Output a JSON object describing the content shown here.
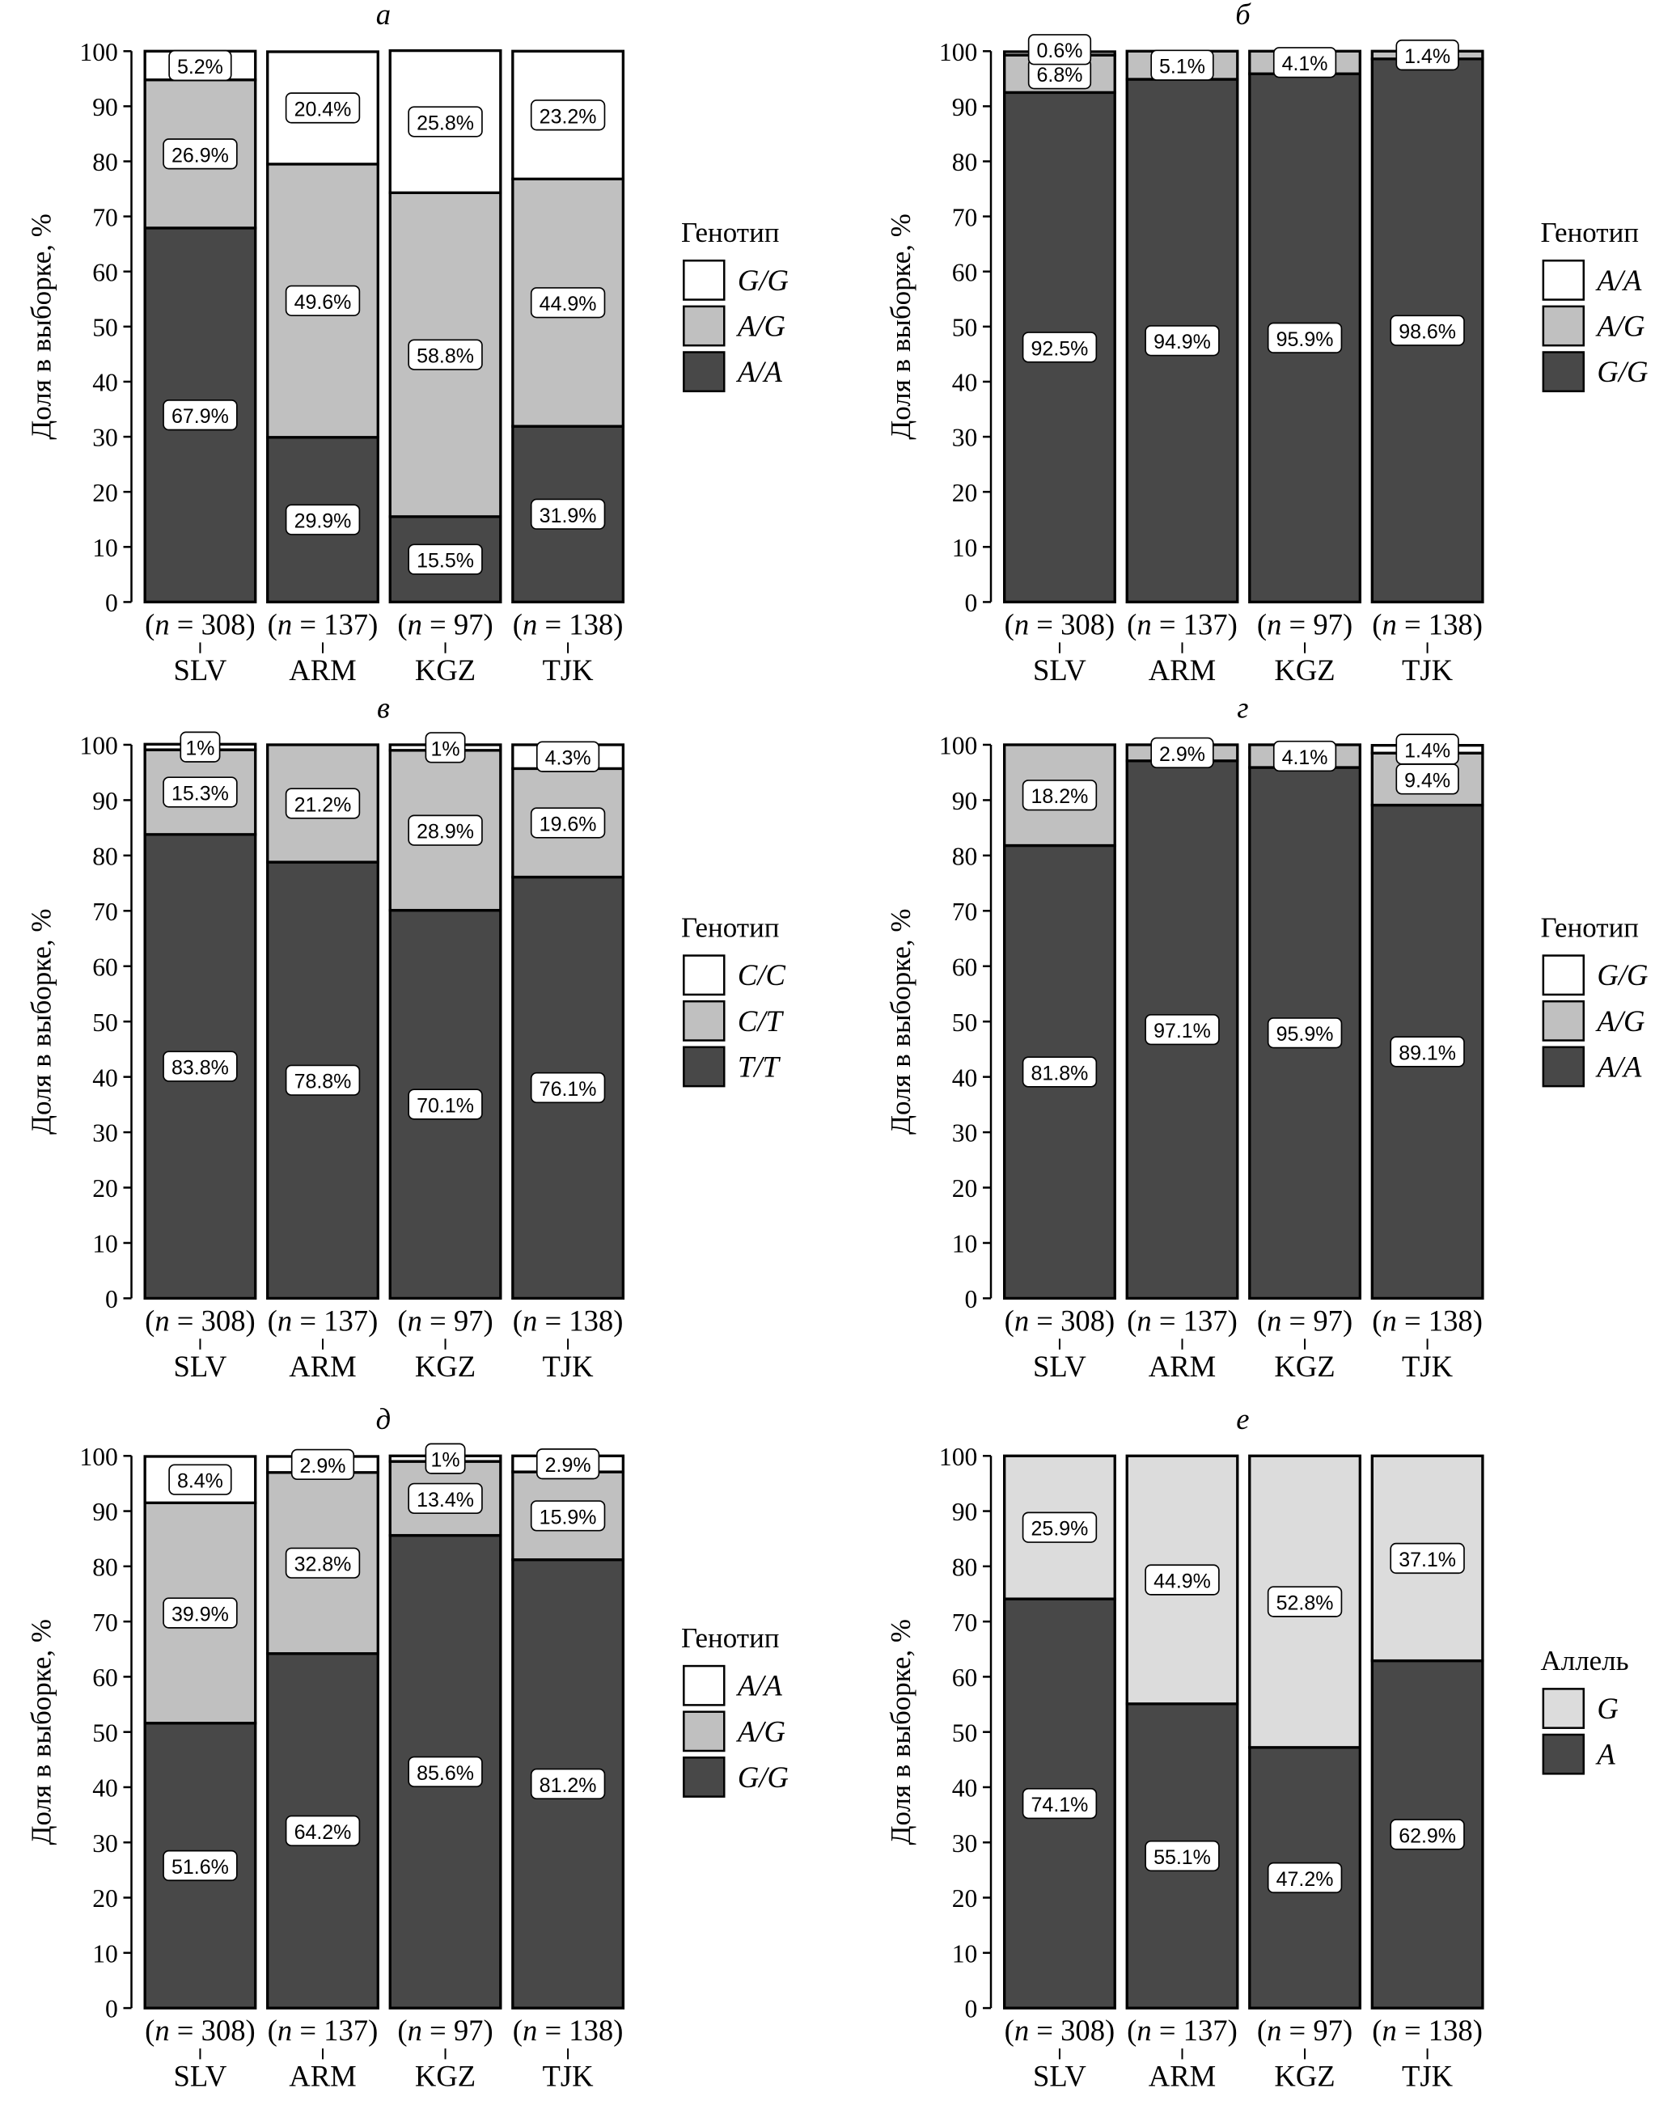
{
  "colors": {
    "dark": "#484848",
    "mid": "#c0c0c0",
    "light_allele": "#dcdcdc",
    "white": "#ffffff"
  },
  "chart_data": [
    {
      "type": "bar",
      "stacked": true,
      "title": "а",
      "ylabel": "Доля в выборке, %",
      "ylim": [
        0,
        100
      ],
      "categories": [
        "SLV",
        "ARM",
        "KGZ",
        "TJK"
      ],
      "n": [
        "308",
        "137",
        "97",
        "138"
      ],
      "legend_title": "Генотип",
      "series": [
        {
          "name": "A/A",
          "color": "dark",
          "values": [
            67.9,
            29.9,
            15.5,
            31.9
          ]
        },
        {
          "name": "A/G",
          "color": "mid",
          "values": [
            26.9,
            49.6,
            58.8,
            44.9
          ]
        },
        {
          "name": "G/G",
          "color": "white",
          "values": [
            5.2,
            20.4,
            25.8,
            23.2
          ]
        }
      ]
    },
    {
      "type": "bar",
      "stacked": true,
      "title": "б",
      "ylabel": "Доля в выборке, %",
      "ylim": [
        0,
        100
      ],
      "categories": [
        "SLV",
        "ARM",
        "KGZ",
        "TJK"
      ],
      "n": [
        "308",
        "137",
        "97",
        "138"
      ],
      "legend_title": "Генотип",
      "series": [
        {
          "name": "G/G",
          "color": "dark",
          "values": [
            92.5,
            94.9,
            95.9,
            98.6
          ]
        },
        {
          "name": "A/G",
          "color": "mid",
          "values": [
            6.8,
            5.1,
            4.1,
            1.4
          ]
        },
        {
          "name": "A/A",
          "color": "white",
          "values": [
            0.6,
            null,
            null,
            null
          ]
        }
      ]
    },
    {
      "type": "bar",
      "stacked": true,
      "title": "в",
      "ylabel": "Доля в выборке, %",
      "ylim": [
        0,
        100
      ],
      "categories": [
        "SLV",
        "ARM",
        "KGZ",
        "TJK"
      ],
      "n": [
        "308",
        "137",
        "97",
        "138"
      ],
      "legend_title": "Генотип",
      "series": [
        {
          "name": "T/T",
          "color": "dark",
          "values": [
            83.8,
            78.8,
            70.1,
            76.1
          ]
        },
        {
          "name": "C/T",
          "color": "mid",
          "values": [
            15.3,
            21.2,
            28.9,
            19.6
          ]
        },
        {
          "name": "C/C",
          "color": "white",
          "values": [
            1,
            null,
            1,
            4.3
          ]
        }
      ]
    },
    {
      "type": "bar",
      "stacked": true,
      "title": "г",
      "ylabel": "Доля в выборке, %",
      "ylim": [
        0,
        100
      ],
      "categories": [
        "SLV",
        "ARM",
        "KGZ",
        "TJK"
      ],
      "n": [
        "308",
        "137",
        "97",
        "138"
      ],
      "legend_title": "Генотип",
      "series": [
        {
          "name": "A/A",
          "color": "dark",
          "values": [
            81.8,
            97.1,
            95.9,
            89.1
          ]
        },
        {
          "name": "A/G",
          "color": "mid",
          "values": [
            18.2,
            2.9,
            4.1,
            9.4
          ]
        },
        {
          "name": "G/G",
          "color": "white",
          "values": [
            null,
            null,
            null,
            1.4
          ]
        }
      ]
    },
    {
      "type": "bar",
      "stacked": true,
      "title": "д",
      "ylabel": "Доля в выборке, %",
      "ylim": [
        0,
        100
      ],
      "categories": [
        "SLV",
        "ARM",
        "KGZ",
        "TJK"
      ],
      "n": [
        "308",
        "137",
        "97",
        "138"
      ],
      "legend_title": "Генотип",
      "series": [
        {
          "name": "G/G",
          "color": "dark",
          "values": [
            51.6,
            64.2,
            85.6,
            81.2
          ]
        },
        {
          "name": "A/G",
          "color": "mid",
          "values": [
            39.9,
            32.8,
            13.4,
            15.9
          ]
        },
        {
          "name": "A/A",
          "color": "white",
          "values": [
            8.4,
            2.9,
            1,
            2.9
          ]
        }
      ]
    },
    {
      "type": "bar",
      "stacked": true,
      "title": "е",
      "ylabel": "Доля в выборке, %",
      "ylim": [
        0,
        100
      ],
      "categories": [
        "SLV",
        "ARM",
        "KGZ",
        "TJK"
      ],
      "n": [
        "308",
        "137",
        "97",
        "138"
      ],
      "legend_title": "Аллель",
      "series": [
        {
          "name": "A",
          "color": "dark",
          "values": [
            74.1,
            55.1,
            47.2,
            62.9
          ]
        },
        {
          "name": "G",
          "color": "light_allele",
          "values": [
            25.9,
            44.9,
            52.8,
            37.1
          ]
        }
      ]
    }
  ]
}
